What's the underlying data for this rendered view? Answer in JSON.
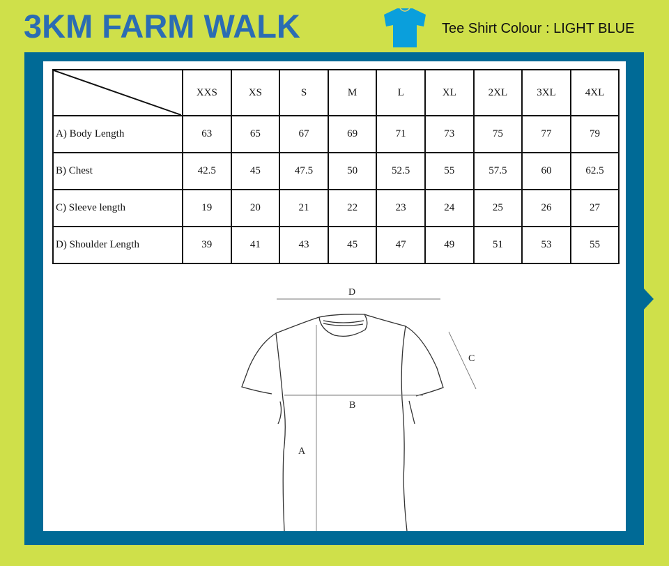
{
  "header": {
    "title": "3KM FARM WALK",
    "tee_icon": "tshirt-icon",
    "tee_icon_color": "#0a9fdc",
    "colour_label": "Tee Shirt Colour : LIGHT BLUE"
  },
  "colors": {
    "background": "#cfe04a",
    "frame": "#006a96",
    "title": "#2b6cb3"
  },
  "size_table": {
    "sizes": [
      "XXS",
      "XS",
      "S",
      "M",
      "L",
      "XL",
      "2XL",
      "3XL",
      "4XL"
    ],
    "rows": [
      {
        "label": "A) Body Length",
        "values": [
          "63",
          "65",
          "67",
          "69",
          "71",
          "73",
          "75",
          "77",
          "79"
        ]
      },
      {
        "label": "B) Chest",
        "values": [
          "42.5",
          "45",
          "47.5",
          "50",
          "52.5",
          "55",
          "57.5",
          "60",
          "62.5"
        ]
      },
      {
        "label": "C) Sleeve length",
        "values": [
          "19",
          "20",
          "21",
          "22",
          "23",
          "24",
          "25",
          "26",
          "27"
        ]
      },
      {
        "label": "D) Shoulder Length",
        "values": [
          "39",
          "41",
          "43",
          "45",
          "47",
          "49",
          "51",
          "53",
          "55"
        ]
      }
    ]
  },
  "diagram": {
    "labels": {
      "a": "A",
      "b": "B",
      "c": "C",
      "d": "D"
    }
  }
}
